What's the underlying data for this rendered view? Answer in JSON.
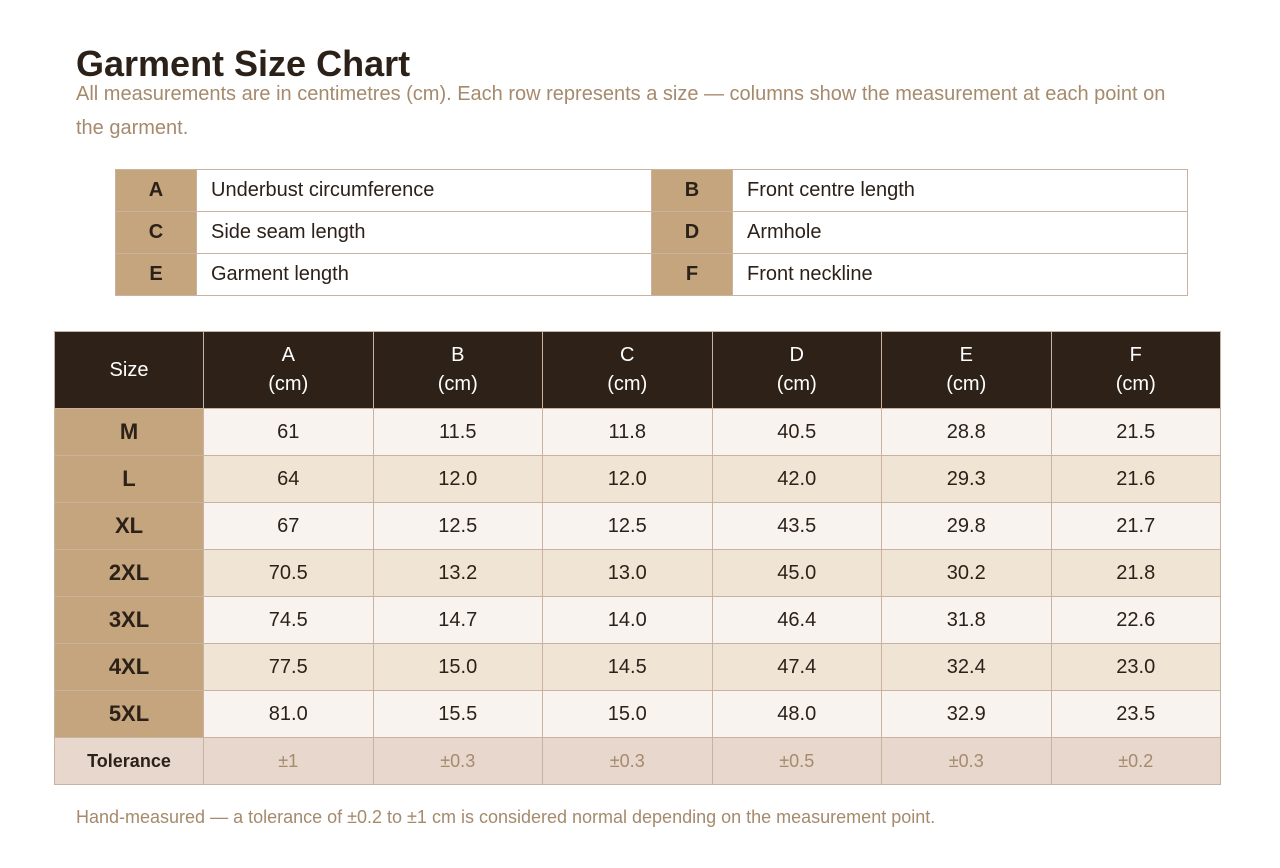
{
  "title": "Garment Size Chart",
  "subtitle": "All measurements are in centimetres (cm). Each row represents a size — columns show the measurement at each point on the garment.",
  "legend": [
    {
      "code": "A",
      "label": "Underbust circumference"
    },
    {
      "code": "B",
      "label": "Front centre length"
    },
    {
      "code": "C",
      "label": "Side seam length"
    },
    {
      "code": "D",
      "label": "Armhole"
    },
    {
      "code": "E",
      "label": "Garment length"
    },
    {
      "code": "F",
      "label": "Front neckline"
    }
  ],
  "table": {
    "size_header": "Size",
    "unit": "(cm)",
    "columns": [
      "A",
      "B",
      "C",
      "D",
      "E",
      "F"
    ],
    "rows": [
      {
        "size": "M",
        "values": [
          "61",
          "11.5",
          "11.8",
          "40.5",
          "28.8",
          "21.5"
        ]
      },
      {
        "size": "L",
        "values": [
          "64",
          "12.0",
          "12.0",
          "42.0",
          "29.3",
          "21.6"
        ]
      },
      {
        "size": "XL",
        "values": [
          "67",
          "12.5",
          "12.5",
          "43.5",
          "29.8",
          "21.7"
        ]
      },
      {
        "size": "2XL",
        "values": [
          "70.5",
          "13.2",
          "13.0",
          "45.0",
          "30.2",
          "21.8"
        ]
      },
      {
        "size": "3XL",
        "values": [
          "74.5",
          "14.7",
          "14.0",
          "46.4",
          "31.8",
          "22.6"
        ]
      },
      {
        "size": "4XL",
        "values": [
          "77.5",
          "15.0",
          "14.5",
          "47.4",
          "32.4",
          "23.0"
        ]
      },
      {
        "size": "5XL",
        "values": [
          "81.0",
          "15.5",
          "15.0",
          "48.0",
          "32.9",
          "23.5"
        ]
      }
    ],
    "tolerance": {
      "label": "Tolerance",
      "values": [
        "±1",
        "±0.3",
        "±0.3",
        "±0.5",
        "±0.3",
        "±0.2"
      ]
    }
  },
  "footnote": "Hand-measured — a tolerance of ±0.2 to ±1 cm is considered normal depending on the measurement point.",
  "colors": {
    "header_dark": "#2e2218",
    "tan": "#c4a57d",
    "row_light": "#f9f3f0",
    "row_beige": "#f0e4d5",
    "tolerance_bg": "#e8d7cd",
    "muted_text": "#a58a6c"
  }
}
